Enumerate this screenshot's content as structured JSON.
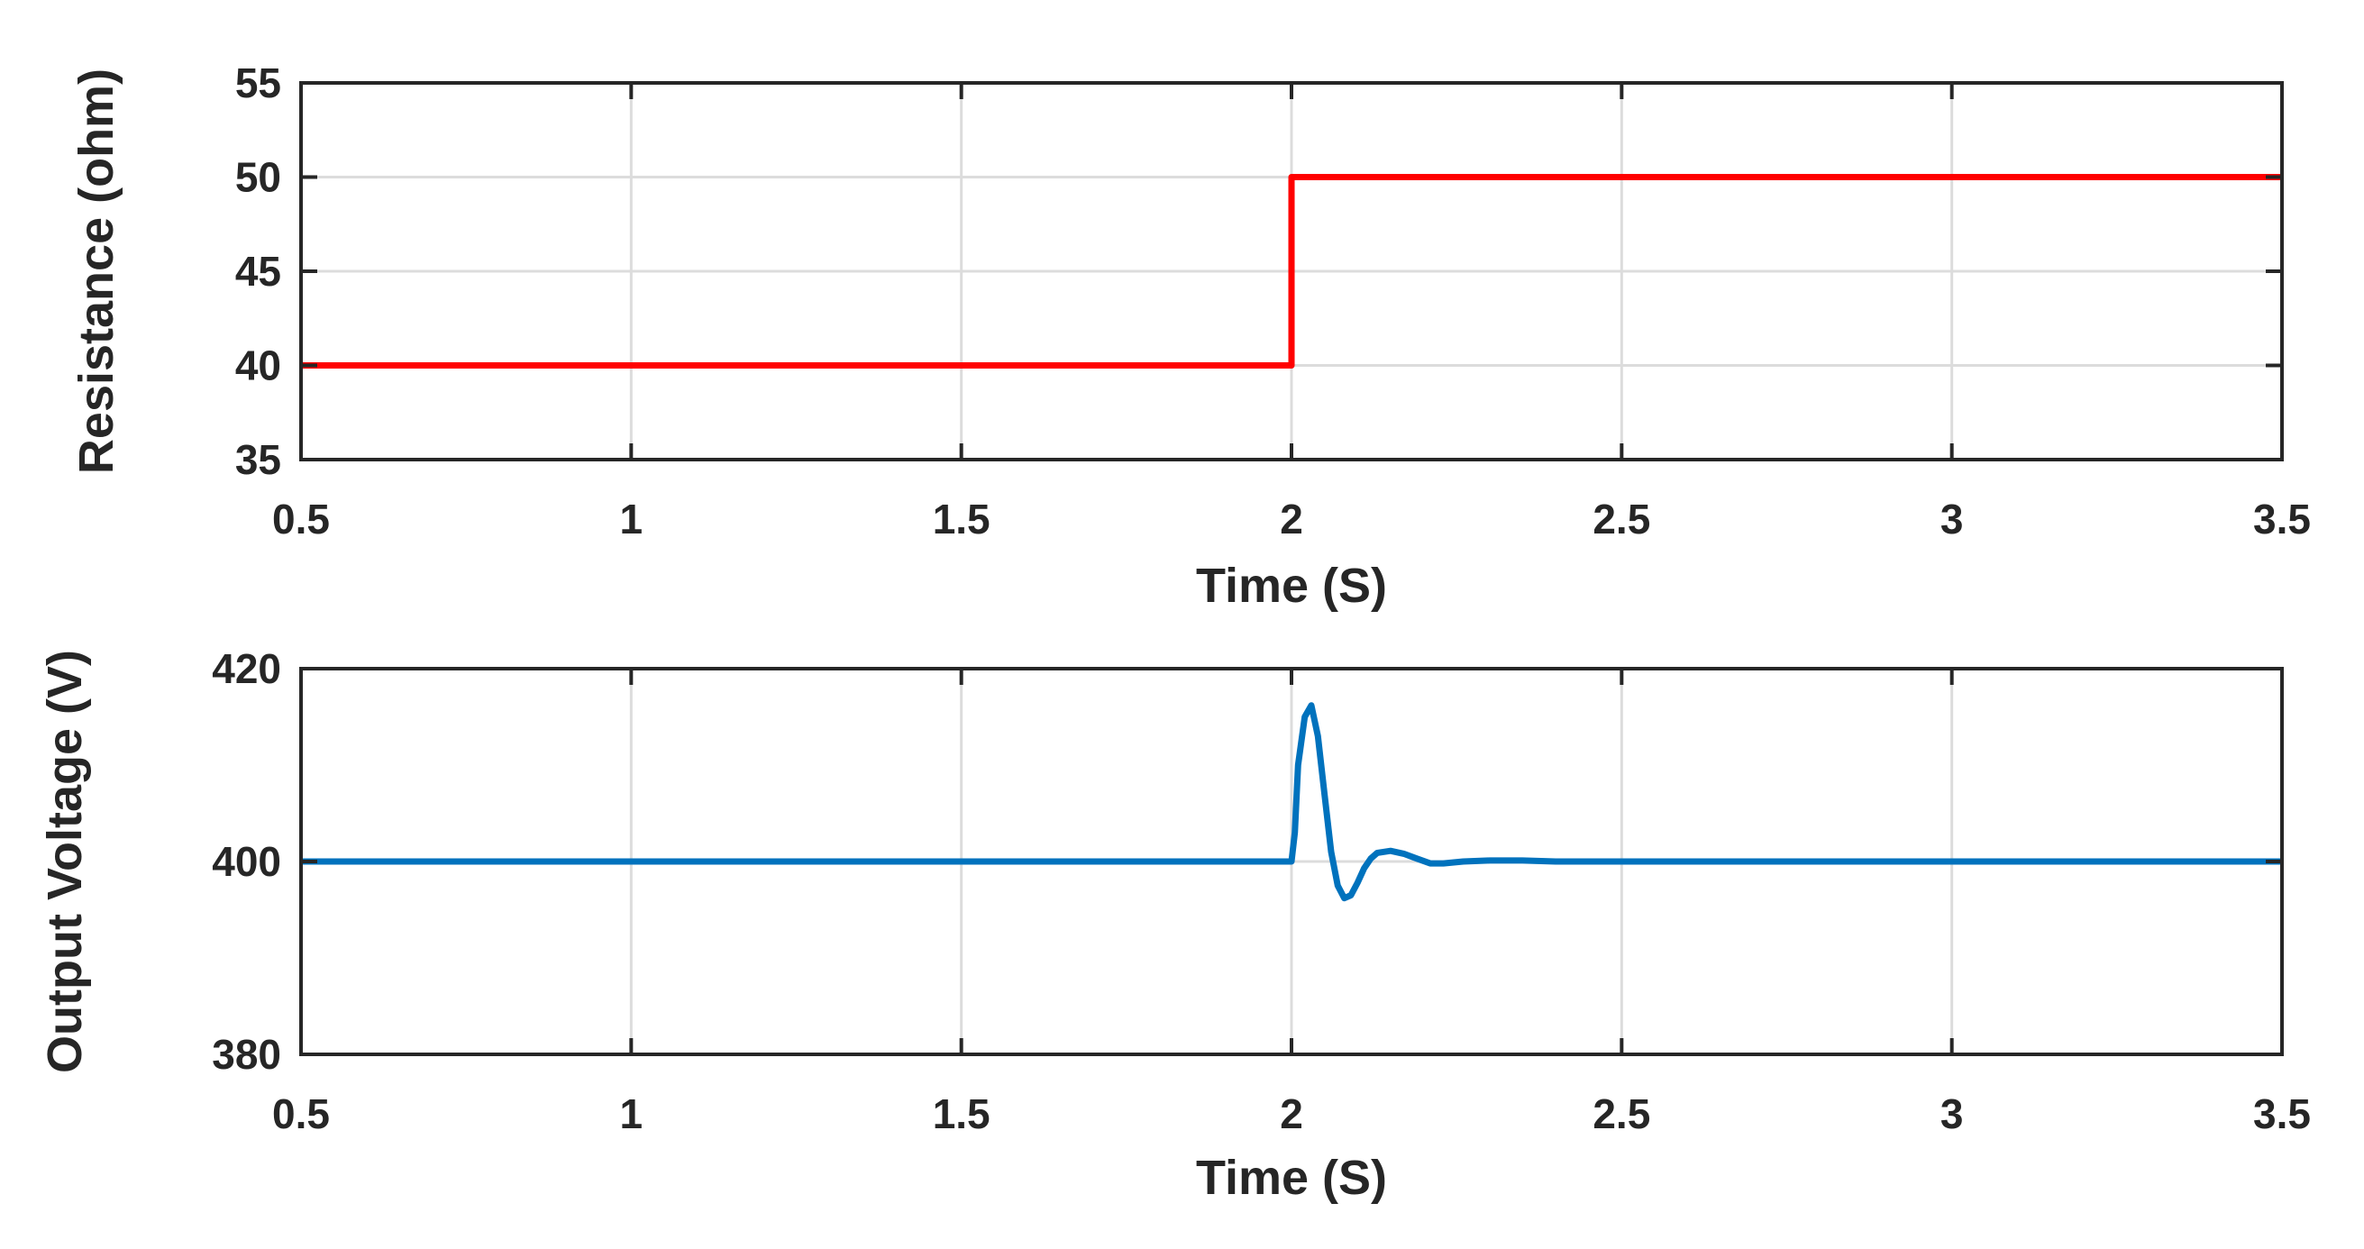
{
  "chart_data": [
    {
      "type": "line",
      "title": "",
      "xlabel": "Time (S)",
      "ylabel": "Resistance (ohm)",
      "xlim": [
        0.5,
        3.5
      ],
      "ylim": [
        35,
        55
      ],
      "xticks": [
        0.5,
        1,
        1.5,
        2,
        2.5,
        3,
        3.5
      ],
      "yticks": [
        35,
        40,
        45,
        50,
        55
      ],
      "x_tick_labels": [
        "0.5",
        "1",
        "1.5",
        "2",
        "2.5",
        "3",
        "3.5"
      ],
      "y_tick_labels": [
        "35",
        "40",
        "45",
        "50",
        "55"
      ],
      "grid": true,
      "legend": "none",
      "series": [
        {
          "color": "#ff0000",
          "x": [
            0.5,
            2.0,
            2.0,
            3.5
          ],
          "y": [
            40,
            40,
            50,
            50
          ]
        }
      ]
    },
    {
      "type": "line",
      "title": "",
      "xlabel": "Time (S)",
      "ylabel": "Output Voltage (V)",
      "xlim": [
        0.5,
        3.5
      ],
      "ylim": [
        380,
        420
      ],
      "xticks": [
        0.5,
        1,
        1.5,
        2,
        2.5,
        3,
        3.5
      ],
      "yticks": [
        380,
        400,
        420
      ],
      "x_tick_labels": [
        "0.5",
        "1",
        "1.5",
        "2",
        "2.5",
        "3",
        "3.5"
      ],
      "y_tick_labels": [
        "380",
        "400",
        "420"
      ],
      "grid": true,
      "legend": "none",
      "series": [
        {
          "color": "#0072bd",
          "x": [
            0.5,
            2.0,
            2.005,
            2.01,
            2.02,
            2.03,
            2.04,
            2.05,
            2.06,
            2.07,
            2.08,
            2.09,
            2.1,
            2.11,
            2.12,
            2.13,
            2.15,
            2.17,
            2.19,
            2.21,
            2.23,
            2.26,
            2.3,
            2.35,
            2.4,
            3.5
          ],
          "y": [
            400,
            400,
            403,
            410,
            415,
            416.2,
            413,
            407,
            401,
            397.5,
            396.2,
            396.5,
            397.8,
            399.3,
            400.3,
            400.9,
            401.1,
            400.8,
            400.3,
            399.8,
            399.8,
            400.0,
            400.1,
            400.1,
            400.0,
            400.0
          ]
        }
      ]
    }
  ]
}
